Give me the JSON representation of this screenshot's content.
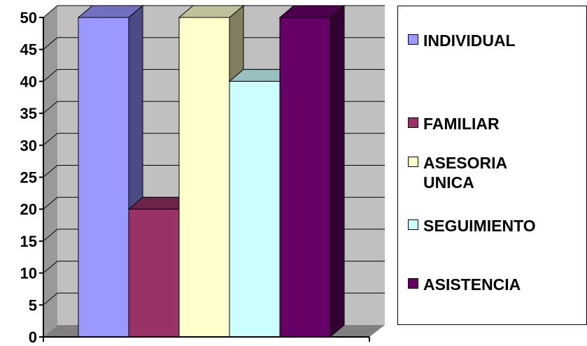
{
  "chart_data": {
    "type": "bar",
    "categories": [
      "INDIVIDUAL",
      "FAMILIAR",
      "ASESORIA UNICA",
      "SEGUIMIENTO",
      "ASISTENCIA"
    ],
    "values": [
      50,
      20,
      50,
      40,
      50
    ],
    "series": [
      {
        "name": "INDIVIDUAL",
        "value": 50,
        "color": "#9999ff",
        "side": "#4b4b85",
        "top": "#7070c0"
      },
      {
        "name": "FAMILIAR",
        "value": 20,
        "color": "#993366",
        "side": "#4b1a33",
        "top": "#6e2449"
      },
      {
        "name": "ASESORIA UNICA",
        "value": 50,
        "color": "#ffffcc",
        "side": "#808060",
        "top": "#c0c09a"
      },
      {
        "name": "SEGUIMIENTO",
        "value": 40,
        "color": "#ccffff",
        "side": "#668080",
        "top": "#99c0c0"
      },
      {
        "name": "ASISTENCIA",
        "value": 50,
        "color": "#660066",
        "side": "#330033",
        "top": "#4d004d"
      }
    ],
    "yticks": [
      0,
      5,
      10,
      15,
      20,
      25,
      30,
      35,
      40,
      45,
      50
    ],
    "ylim": [
      0,
      50
    ],
    "grid": true,
    "legend_position": "right",
    "title": "",
    "xlabel": "",
    "ylabel": "",
    "wall_color": "#c0c0c0",
    "floor_color": "#808080"
  }
}
